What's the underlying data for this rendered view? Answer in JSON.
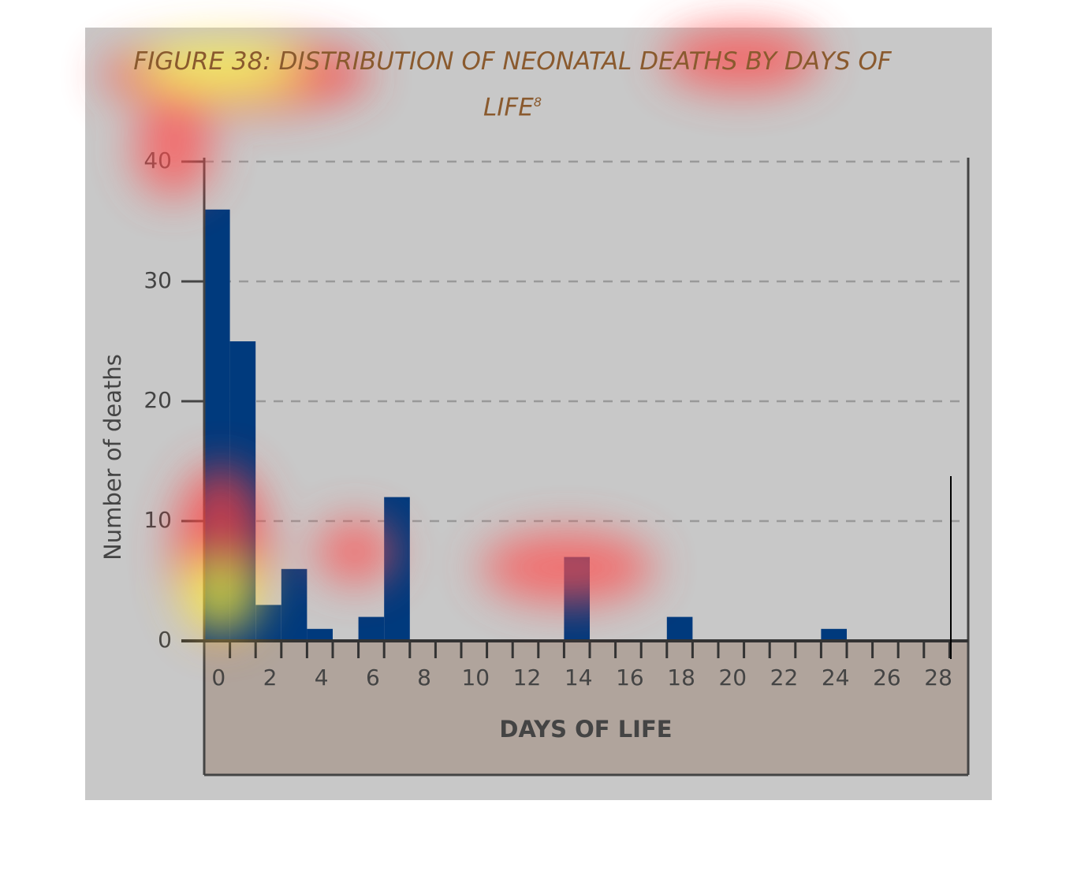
{
  "chart_data": {
    "type": "bar",
    "title": "FIGURE 38: DISTRIBUTION OF NEONATAL DEATHS BY DAYS OF LIFE",
    "title_note": "8",
    "x_label": "DAYS OF LIFE",
    "y_label": "Number of deaths",
    "categories": [
      0,
      null,
      2,
      null,
      4,
      null,
      6,
      null,
      8,
      null,
      10,
      null,
      12,
      null,
      14,
      null,
      16,
      null,
      18,
      null,
      20,
      null,
      22,
      null,
      24,
      null,
      26,
      null,
      28
    ],
    "values": [
      36,
      25,
      3,
      6,
      1,
      0,
      2,
      12,
      0,
      0,
      0,
      0,
      0,
      0,
      7,
      0,
      0,
      0,
      2,
      0,
      0,
      0,
      0,
      0,
      1,
      0,
      0,
      0,
      0
    ],
    "color": "#003a7d",
    "ylim": [
      0,
      40
    ],
    "yticks": [
      0,
      10,
      20,
      30,
      40
    ],
    "grid": true
  }
}
